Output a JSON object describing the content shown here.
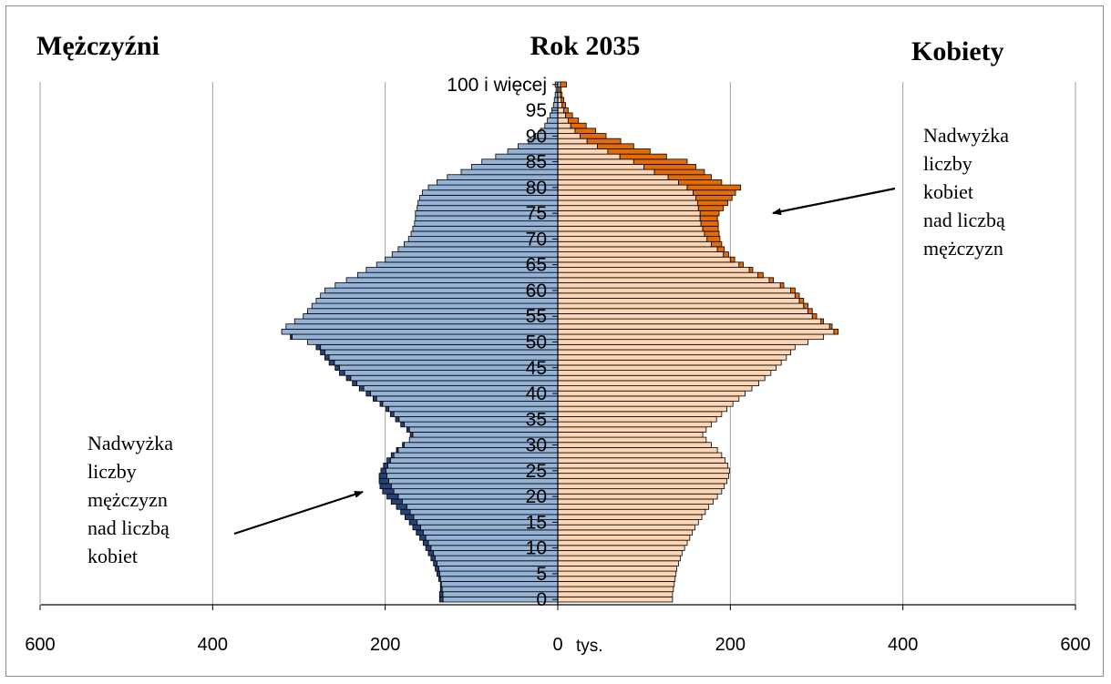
{
  "chart_data": {
    "type": "bar",
    "subtype": "population-pyramid",
    "title": "Rok 2035",
    "left_label": "Mężczyźni",
    "right_label": "Kobiety",
    "unit_label": "tys.",
    "xlim": [
      -600,
      600
    ],
    "x_ticks": [
      "600",
      "400",
      "200",
      "0",
      "200",
      "400",
      "600"
    ],
    "age_tick_labels": [
      "0",
      "5",
      "10",
      "15",
      "20",
      "25",
      "30",
      "35",
      "40",
      "45",
      "50",
      "55",
      "60",
      "65",
      "70",
      "75",
      "80",
      "85",
      "90",
      "95",
      "100 i więcej"
    ],
    "ages": [
      0,
      1,
      2,
      3,
      4,
      5,
      6,
      7,
      8,
      9,
      10,
      11,
      12,
      13,
      14,
      15,
      16,
      17,
      18,
      19,
      20,
      21,
      22,
      23,
      24,
      25,
      26,
      27,
      28,
      29,
      30,
      31,
      32,
      33,
      34,
      35,
      36,
      37,
      38,
      39,
      40,
      41,
      42,
      43,
      44,
      45,
      46,
      47,
      48,
      49,
      50,
      51,
      52,
      53,
      54,
      55,
      56,
      57,
      58,
      59,
      60,
      61,
      62,
      63,
      64,
      65,
      66,
      67,
      68,
      69,
      70,
      71,
      72,
      73,
      74,
      75,
      76,
      77,
      78,
      79,
      80,
      81,
      82,
      83,
      84,
      85,
      86,
      87,
      88,
      89,
      90,
      91,
      92,
      93,
      94,
      95,
      96,
      97,
      98,
      99,
      100
    ],
    "series": [
      {
        "name": "Mężczyźni",
        "values": [
          137,
          137,
          136,
          136,
          138,
          140,
          142,
          144,
          147,
          150,
          153,
          156,
          160,
          164,
          168,
          172,
          177,
          182,
          187,
          193,
          198,
          203,
          206,
          207,
          207,
          205,
          202,
          198,
          193,
          187,
          180,
          172,
          171,
          175,
          182,
          188,
          194,
          199,
          206,
          214,
          222,
          230,
          238,
          245,
          253,
          258,
          265,
          270,
          275,
          280,
          290,
          310,
          320,
          315,
          305,
          295,
          290,
          285,
          280,
          275,
          270,
          258,
          245,
          232,
          222,
          210,
          200,
          192,
          185,
          178,
          173,
          170,
          168,
          166,
          165,
          165,
          163,
          162,
          160,
          157,
          150,
          140,
          128,
          112,
          100,
          88,
          72,
          58,
          46,
          34,
          26,
          20,
          15,
          12,
          9,
          7,
          5,
          4,
          3,
          2,
          3
        ]
      },
      {
        "name": "Kobiety",
        "values": [
          133,
          133,
          134,
          135,
          136,
          137,
          138,
          140,
          142,
          144,
          147,
          150,
          153,
          156,
          159,
          163,
          167,
          171,
          175,
          180,
          185,
          190,
          193,
          196,
          198,
          199,
          197,
          194,
          190,
          185,
          178,
          172,
          168,
          172,
          178,
          184,
          190,
          196,
          203,
          210,
          217,
          225,
          233,
          240,
          247,
          253,
          259,
          265,
          270,
          275,
          290,
          308,
          325,
          318,
          308,
          300,
          295,
          290,
          285,
          280,
          275,
          262,
          250,
          238,
          226,
          215,
          205,
          198,
          193,
          190,
          188,
          187,
          186,
          186,
          185,
          187,
          192,
          197,
          202,
          206,
          212,
          190,
          178,
          170,
          160,
          150,
          126,
          107,
          88,
          73,
          56,
          44,
          33,
          24,
          17,
          12,
          9,
          7,
          5,
          4,
          10
        ]
      },
      {
        "name": "Nadwyżka liczby mężczyzn nad liczbą kobiet",
        "values": [
          4,
          4,
          2,
          1,
          2,
          3,
          4,
          4,
          5,
          6,
          6,
          6,
          7,
          8,
          9,
          9,
          10,
          11,
          12,
          13,
          13,
          13,
          13,
          11,
          9,
          6,
          5,
          4,
          3,
          2,
          2,
          0,
          3,
          3,
          4,
          4,
          4,
          3,
          3,
          4,
          5,
          5,
          5,
          5,
          6,
          5,
          6,
          5,
          5,
          5,
          0,
          2,
          0,
          0,
          0,
          0,
          0,
          0,
          0,
          0,
          0,
          0,
          0,
          0,
          0,
          0,
          0,
          0,
          0,
          0,
          0,
          0,
          0,
          0,
          0,
          0,
          0,
          0,
          0,
          0,
          0,
          0,
          0,
          0,
          0,
          0,
          0,
          0,
          0,
          0,
          0,
          0,
          0,
          0,
          0,
          0,
          0,
          0,
          0,
          0,
          0
        ]
      },
      {
        "name": "Nadwyżka liczby kobiet nad liczbą mężczyzn",
        "values": [
          0,
          0,
          0,
          0,
          0,
          0,
          0,
          0,
          0,
          0,
          0,
          0,
          0,
          0,
          0,
          0,
          0,
          0,
          0,
          0,
          0,
          0,
          0,
          0,
          0,
          0,
          0,
          0,
          0,
          0,
          0,
          0,
          0,
          0,
          0,
          0,
          0,
          0,
          0,
          0,
          0,
          0,
          0,
          0,
          0,
          0,
          0,
          0,
          0,
          0,
          0,
          0,
          5,
          3,
          3,
          5,
          5,
          5,
          5,
          5,
          5,
          4,
          5,
          6,
          4,
          5,
          5,
          6,
          8,
          12,
          15,
          17,
          18,
          20,
          20,
          22,
          29,
          35,
          42,
          49,
          62,
          50,
          50,
          58,
          60,
          62,
          54,
          49,
          42,
          39,
          30,
          24,
          18,
          12,
          8,
          5,
          4,
          3,
          2,
          2,
          7
        ]
      }
    ],
    "annotations": [
      {
        "text": [
          "Nadwyżka",
          "liczby",
          "kobiet",
          "nad liczbą",
          "mężczyzn"
        ],
        "points_to": "ages 70-80, female side"
      },
      {
        "text": [
          "Nadwyżka",
          "liczby",
          "mężczyzn",
          "nad liczbą",
          "kobiet"
        ],
        "points_to": "ages 18-24, male side"
      }
    ],
    "colors": {
      "male": "#95b3d7",
      "male_excess": "#244276",
      "female": "#fcd5b4",
      "female_excess": "#e26b0a",
      "bar_stroke": "#000000",
      "grid": "#a0a0a0"
    },
    "grid": true,
    "legend": "none"
  }
}
